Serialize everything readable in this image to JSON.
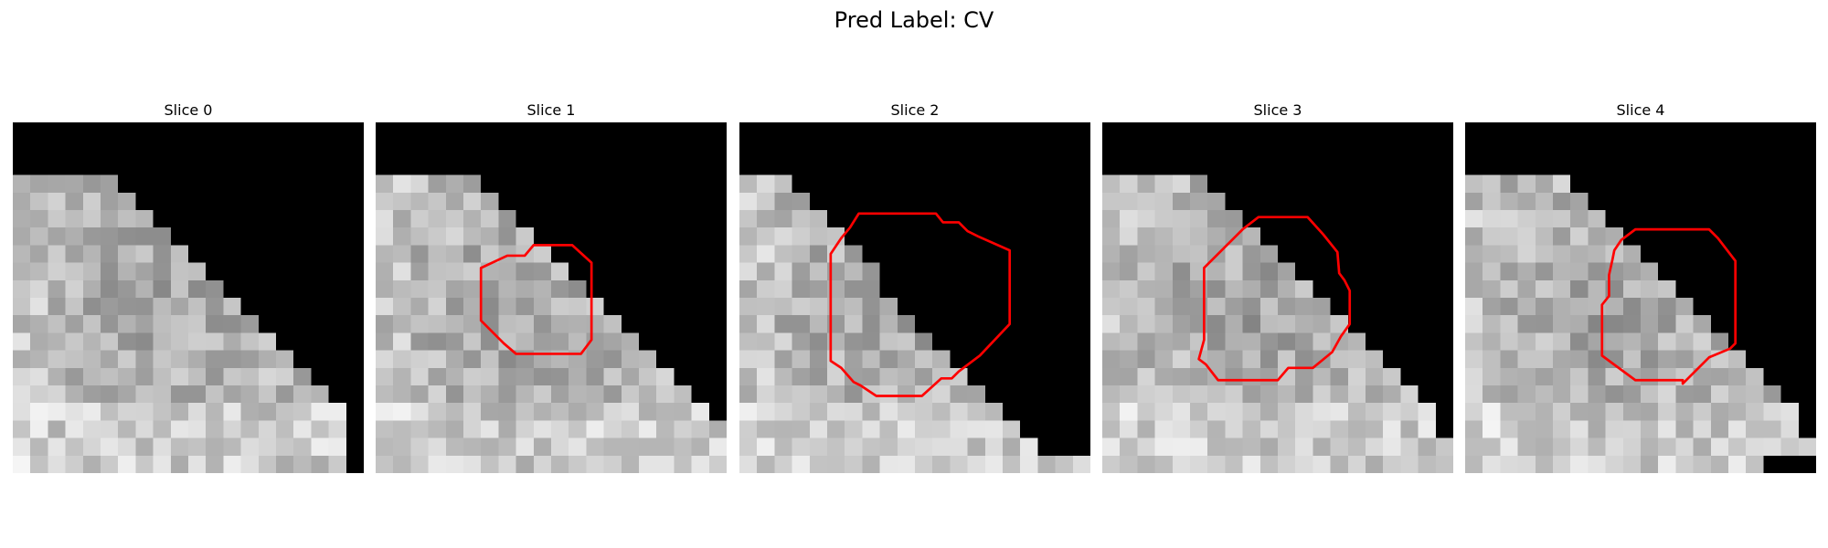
{
  "figure": {
    "title": "Pred Label: CV",
    "contour_color": "#ff0000"
  },
  "panels": [
    {
      "title": "Slice 0",
      "background_edge": [
        5,
        5,
        5,
        6,
        7,
        8,
        9,
        10,
        11,
        12,
        13,
        14,
        15,
        16,
        17,
        18,
        19,
        19,
        19,
        19
      ],
      "contour": []
    },
    {
      "title": "Slice 1",
      "background_edge": [
        5,
        5,
        5,
        6,
        7,
        8,
        9,
        10,
        11,
        12,
        13,
        14,
        15,
        16,
        17,
        18,
        19,
        20,
        20,
        20
      ],
      "contour": [
        [
          6,
          8.3
        ],
        [
          7.5,
          7.6
        ],
        [
          8.5,
          7.6
        ],
        [
          9,
          7
        ],
        [
          11.2,
          7
        ],
        [
          12.3,
          8
        ],
        [
          12.3,
          12.4
        ],
        [
          11.7,
          13.2
        ],
        [
          8,
          13.2
        ],
        [
          7.3,
          12.6
        ],
        [
          6,
          11.3
        ]
      ]
    },
    {
      "title": "Slice 2",
      "background_edge": [
        3,
        3,
        3,
        3,
        4,
        5,
        6,
        7,
        8,
        8,
        9,
        10,
        11,
        12,
        13,
        14,
        15,
        16,
        17,
        20
      ],
      "contour": [
        [
          5.8,
          6.6
        ],
        [
          6.3,
          6
        ],
        [
          6.8,
          5.2
        ],
        [
          11.2,
          5.2
        ],
        [
          11.6,
          5.7
        ],
        [
          12.5,
          5.7
        ],
        [
          13,
          6.2
        ],
        [
          13.6,
          6.5
        ],
        [
          15.4,
          7.3
        ],
        [
          15.4,
          11.5
        ],
        [
          13.7,
          13.3
        ],
        [
          12.5,
          14.2
        ],
        [
          12.1,
          14.6
        ],
        [
          11.5,
          14.6
        ],
        [
          10.4,
          15.6
        ],
        [
          7.8,
          15.6
        ],
        [
          6.9,
          15
        ],
        [
          6.5,
          14.8
        ],
        [
          5.8,
          14
        ],
        [
          5.2,
          13.6
        ],
        [
          5.2,
          7.5
        ]
      ]
    },
    {
      "title": "Slice 3",
      "background_edge": [
        5,
        5,
        5,
        6,
        7,
        8,
        9,
        10,
        11,
        12,
        13,
        14,
        15,
        16,
        17,
        18,
        19,
        19,
        20,
        20
      ],
      "contour": [
        [
          7.6,
          6.5
        ],
        [
          8,
          6.1
        ],
        [
          8.9,
          5.4
        ],
        [
          11.7,
          5.4
        ],
        [
          12.6,
          6.4
        ],
        [
          13.4,
          7.4
        ],
        [
          13.5,
          8.6
        ],
        [
          13.8,
          9
        ],
        [
          14.1,
          9.6
        ],
        [
          14.1,
          11.5
        ],
        [
          13.6,
          12.2
        ],
        [
          13.1,
          13.1
        ],
        [
          12,
          14
        ],
        [
          10.6,
          14
        ],
        [
          10,
          14.7
        ],
        [
          6.6,
          14.7
        ],
        [
          5.9,
          13.8
        ],
        [
          5.5,
          13.5
        ],
        [
          5.8,
          12.4
        ],
        [
          5.8,
          8.3
        ]
      ]
    },
    {
      "title": "Slice 4",
      "background_edge": [
        5,
        5,
        5,
        6,
        7,
        8,
        9,
        10,
        11,
        12,
        13,
        14,
        15,
        16,
        17,
        18,
        19,
        19,
        20,
        17
      ],
      "contour": [
        [
          8.4,
          7.8
        ],
        [
          8.5,
          7.3
        ],
        [
          8.9,
          6.7
        ],
        [
          9.7,
          6.1
        ],
        [
          13.9,
          6.1
        ],
        [
          14.4,
          6.6
        ],
        [
          15.4,
          7.9
        ],
        [
          15.4,
          12.6
        ],
        [
          15.1,
          12.9
        ],
        [
          13.9,
          13.4
        ],
        [
          12.9,
          14.4
        ],
        [
          12.4,
          14.9
        ],
        [
          12.4,
          14.7
        ],
        [
          9.7,
          14.7
        ],
        [
          7.8,
          13.3
        ],
        [
          7.8,
          10.4
        ],
        [
          8.2,
          9.9
        ],
        [
          8.2,
          8.7
        ]
      ]
    }
  ]
}
